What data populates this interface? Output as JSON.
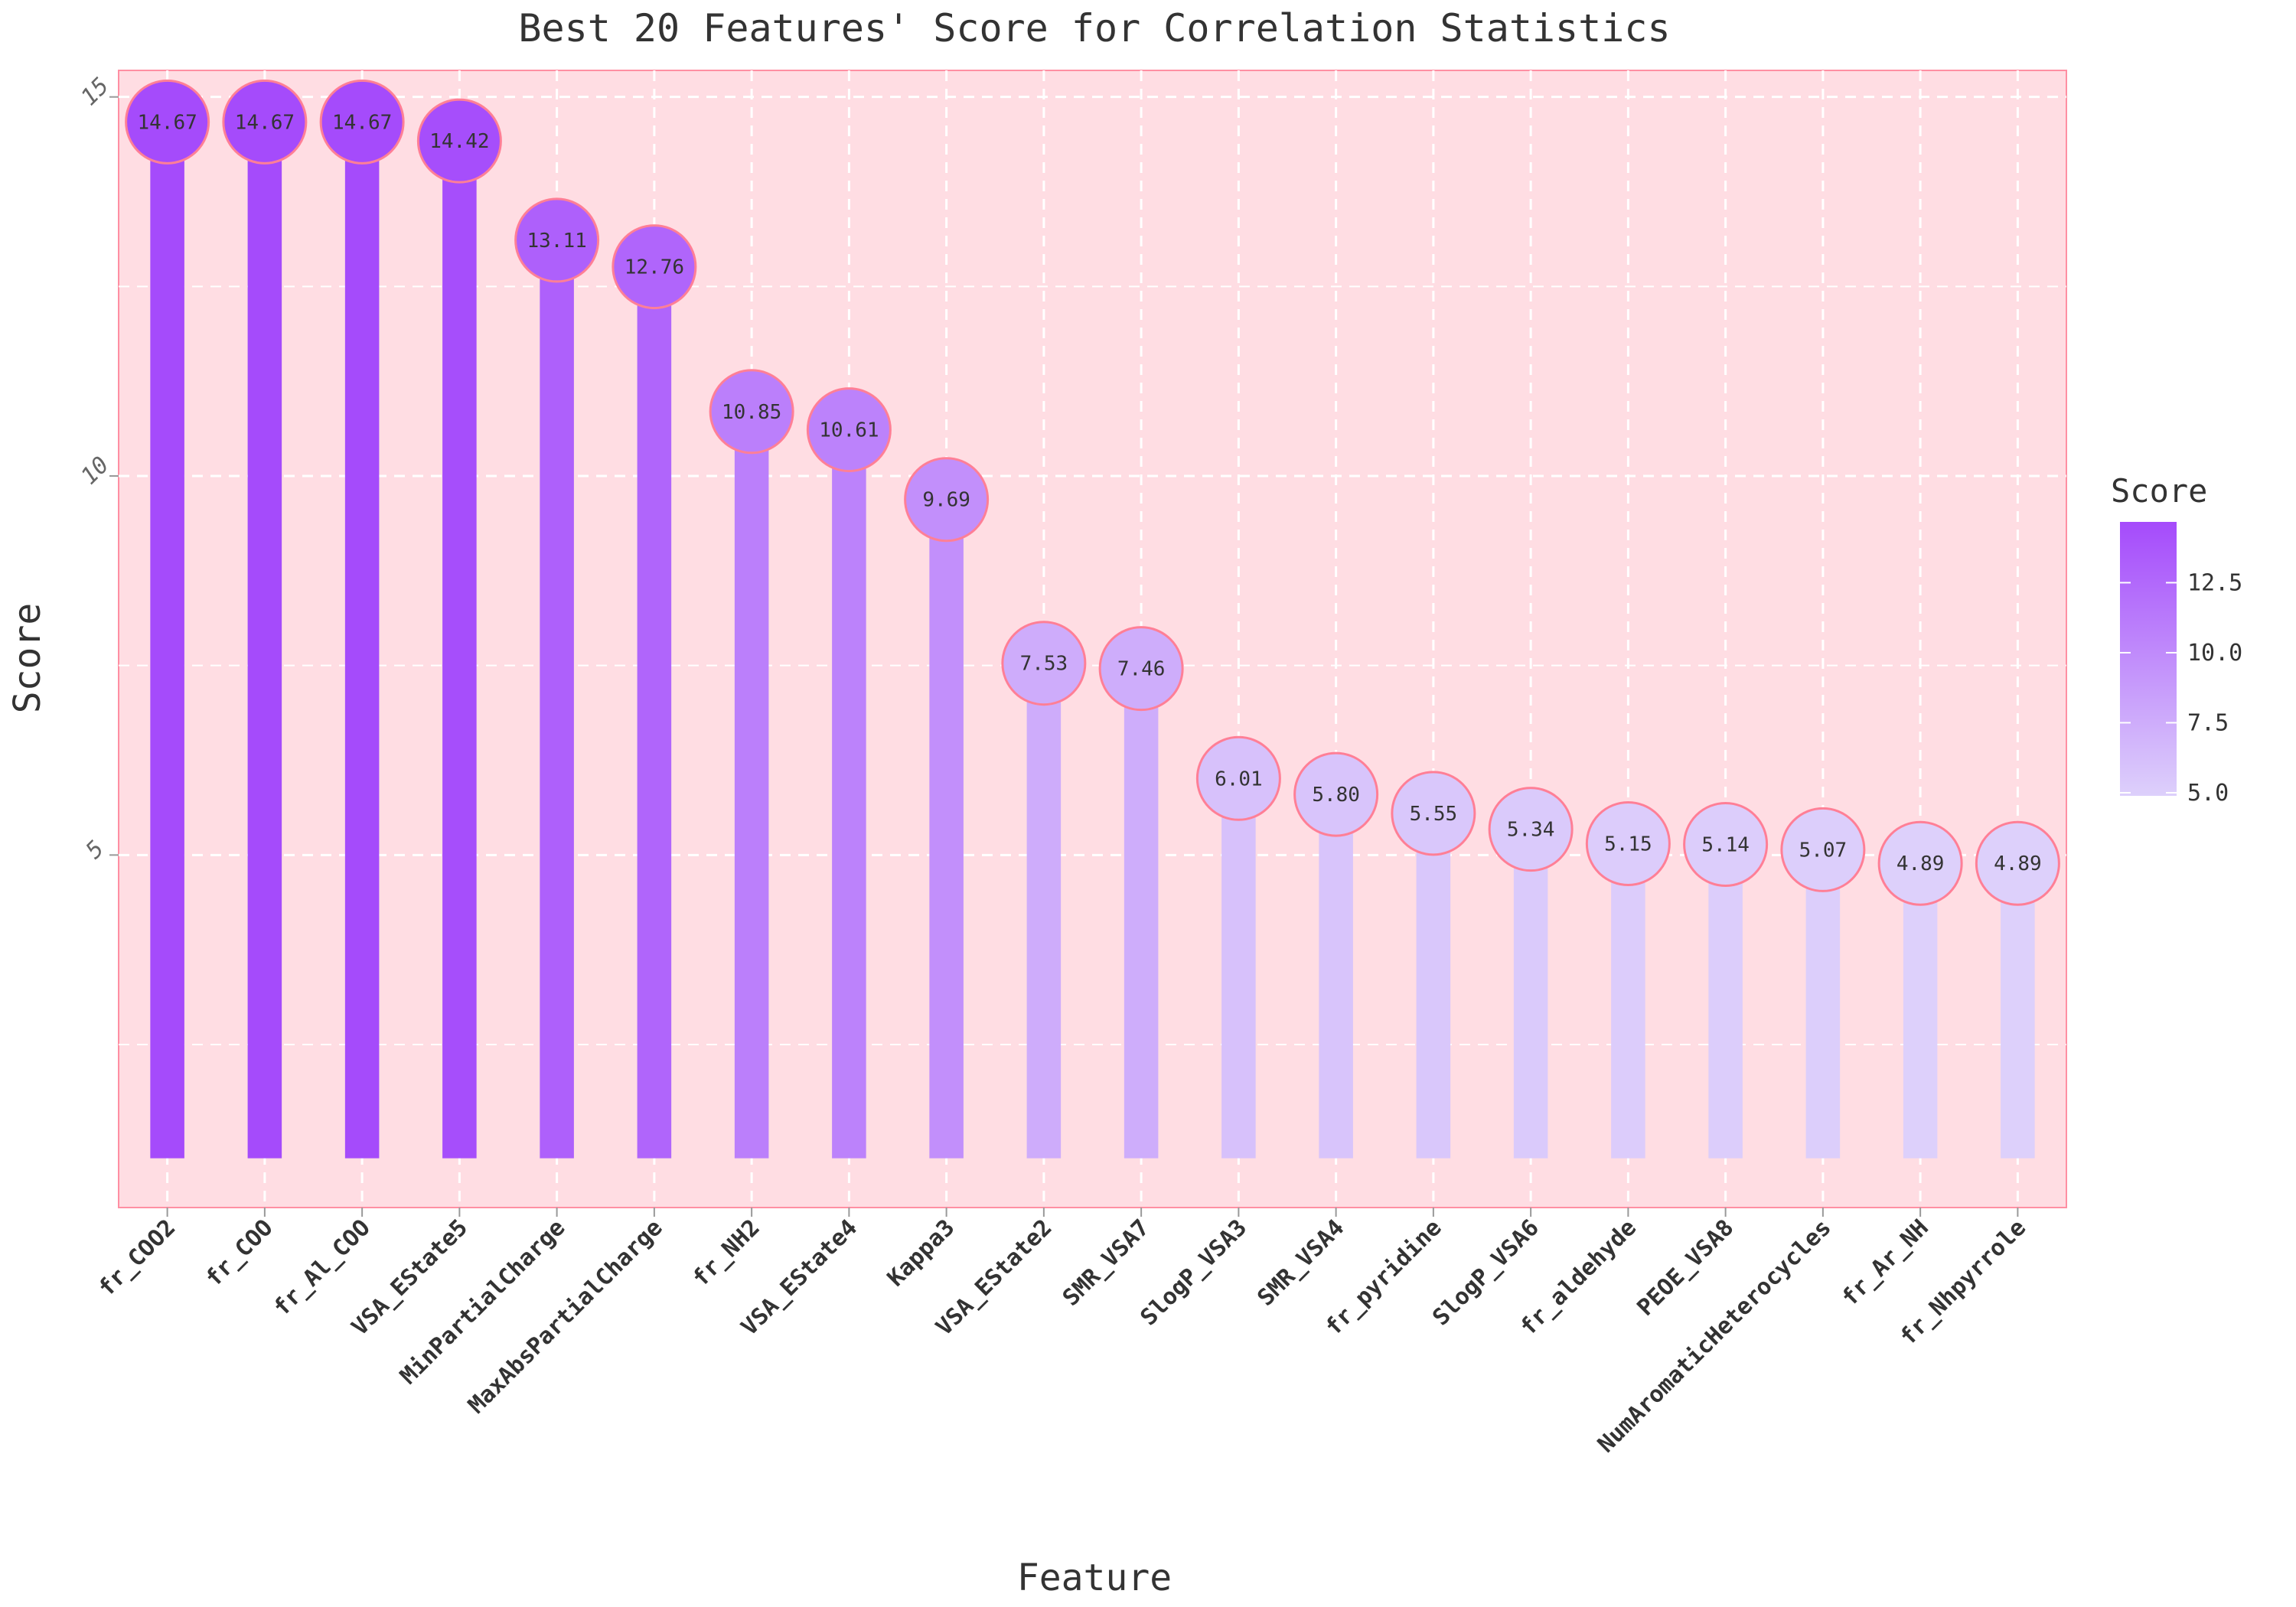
{
  "chart_data": {
    "type": "bar",
    "title": "Best 20 Features' Score for Correlation Statistics",
    "xlabel": "Feature",
    "ylabel": "Score",
    "categories": [
      "fr_COO2",
      "fr_COO",
      "fr_Al_COO",
      "VSA_EState5",
      "MinPartialCharge",
      "MaxAbsPartialCharge",
      "fr_NH2",
      "VSA_EState4",
      "Kappa3",
      "VSA_EState2",
      "SMR_VSA7",
      "SlogP_VSA3",
      "SMR_VSA4",
      "fr_pyridine",
      "SlogP_VSA6",
      "fr_aldehyde",
      "PEOE_VSA8",
      "NumAromaticHeterocycles",
      "fr_Ar_NH",
      "fr_Nhpyrrole"
    ],
    "values": [
      14.67,
      14.67,
      14.67,
      14.42,
      13.11,
      12.76,
      10.85,
      10.61,
      9.69,
      7.53,
      7.46,
      6.01,
      5.8,
      5.55,
      5.34,
      5.15,
      5.14,
      5.07,
      4.89,
      4.89
    ],
    "value_labels": [
      "14.67",
      "14.67",
      "14.67",
      "14.42",
      "13.11",
      "12.76",
      "10.85",
      "10.61",
      "9.69",
      "7.53",
      "7.46",
      "6.01",
      "5.80",
      "5.55",
      "5.34",
      "5.15",
      "5.14",
      "5.07",
      "4.89",
      "4.89"
    ],
    "bar_baseline": 1,
    "ylim": [
      0.35,
      15.35
    ],
    "yticks": [
      5,
      10,
      15
    ],
    "ytick_labels": [
      "5",
      "10",
      "15"
    ],
    "grid": true,
    "legend": {
      "title": "Score",
      "placement": "right",
      "range": [
        4.89,
        14.67
      ],
      "ticks": [
        5.0,
        7.5,
        10.0,
        12.5
      ],
      "tick_labels": [
        "5.0",
        "7.5",
        "10.0",
        "12.5"
      ]
    },
    "colors": {
      "low": "#ddd0fb",
      "high": "#a54bfb",
      "panel_background": "#ffdde3",
      "panel_border": "#ff8fa3",
      "circle_stroke": "#ff7f96",
      "grid": "#ffffff"
    }
  }
}
